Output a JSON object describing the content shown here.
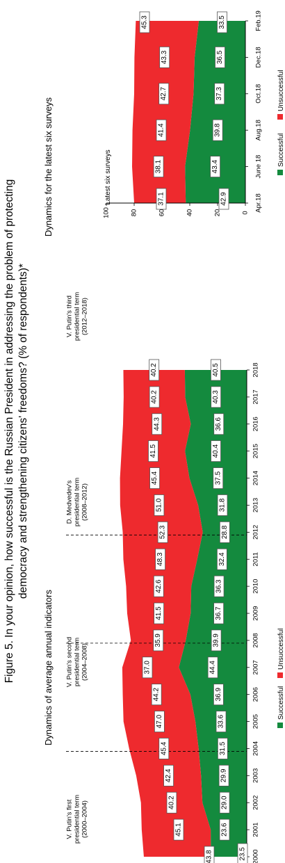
{
  "title_line1": "Figure 5. In your opinion, how successful is the Russian President in addressing the problem of protecting",
  "title_line2": "democracy and strengthening citizens' freedoms? (% of respondents)*",
  "colors": {
    "successful": "#148a3e",
    "unsuccessful": "#ee2a2e"
  },
  "chart_data": [
    {
      "type": "area",
      "title": "Dynamics of average annual indicators",
      "x": [
        "2000",
        "2001",
        "2002",
        "2003",
        "2004",
        "2005",
        "2006",
        "2007",
        "2008",
        "2009",
        "2010",
        "2011",
        "2012",
        "2013",
        "2014",
        "2015",
        "2016",
        "2017",
        "2018"
      ],
      "series": [
        {
          "name": "Successful",
          "values": [
            23.5,
            23.6,
            29.0,
            29.9,
            31.5,
            33.6,
            36.9,
            44.4,
            39.9,
            36.7,
            36.3,
            32.4,
            28.8,
            31.8,
            37.5,
            40.4,
            36.6,
            40.3,
            40.5
          ]
        },
        {
          "name": "Unsuccessful",
          "values": [
            43.8,
            45.1,
            40.2,
            42.4,
            45.4,
            47.0,
            44.2,
            37.0,
            35.9,
            41.5,
            42.6,
            48.3,
            52.3,
            51.0,
            45.4,
            41.5,
            44.3,
            40.2,
            40.2
          ]
        }
      ],
      "annotations": [
        {
          "line1": "V. Putin's first",
          "line2": "presidential term",
          "line3": "(2000–2004)"
        },
        {
          "line1": "V. Putin's second",
          "line2": "presidential term",
          "line3": "(2004–2008)"
        },
        {
          "line1": "D. Medvedev's",
          "line2": "presidential term",
          "line3": "(2008–2012)"
        },
        {
          "line1": "V. Putin's third",
          "line2": "presidential term",
          "line3": "(2012–2018)"
        }
      ],
      "term_boundaries": [
        "2004",
        "2008",
        "2012"
      ],
      "legend": [
        "Successful",
        "Unsuccessful"
      ]
    },
    {
      "type": "area",
      "title": "Dynamics for the latest six surveys",
      "subtitle": "Latest six surveys",
      "x": [
        "Apr.18",
        "June 18",
        "Aug.18",
        "Oct.18",
        "Dec.18",
        "Feb.19"
      ],
      "ylim": [
        0,
        100
      ],
      "yticks": [
        "0",
        "20",
        "40",
        "60",
        "80",
        "100"
      ],
      "series": [
        {
          "name": "Successful",
          "values": [
            42.9,
            43.4,
            39.8,
            37.3,
            36.5,
            33.5
          ]
        },
        {
          "name": "Unsuccessful",
          "values": [
            37.1,
            38.1,
            41.4,
            42.7,
            43.3,
            45.3
          ]
        }
      ],
      "legend": [
        "Successful",
        "Unsuccessful"
      ]
    }
  ]
}
